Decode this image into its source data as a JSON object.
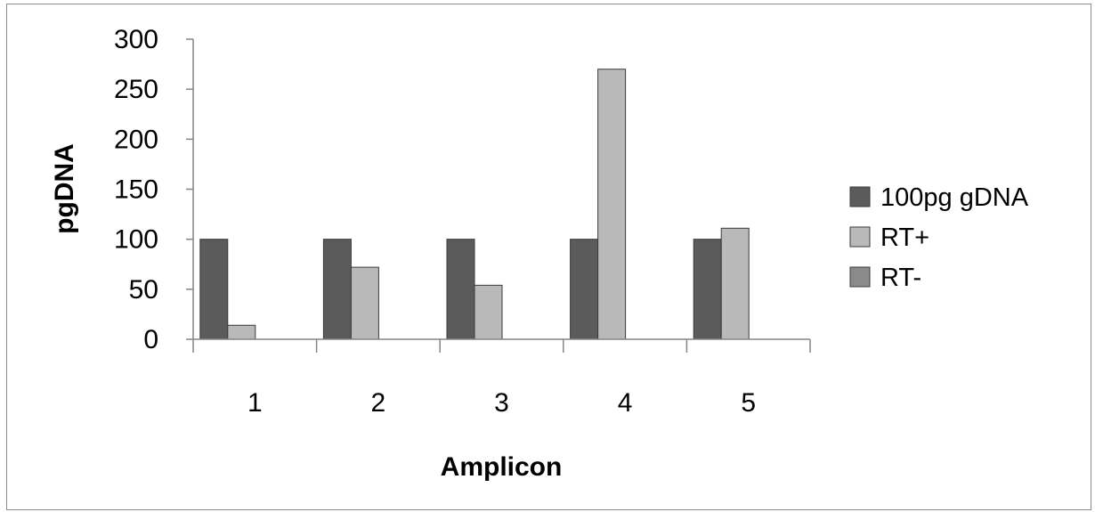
{
  "chart_data": {
    "type": "bar",
    "xlabel": "Amplicon",
    "ylabel": "pgDNA",
    "categories": [
      "1",
      "2",
      "3",
      "4",
      "5"
    ],
    "ylim": [
      0,
      300
    ],
    "yticks": [
      0,
      50,
      100,
      150,
      200,
      250,
      300
    ],
    "ytick_labels": [
      "0",
      "50",
      "100",
      "150",
      "200",
      "250",
      "300"
    ],
    "grid": false,
    "legend_position": "right",
    "series": [
      {
        "name": "100pg gDNA",
        "color": "#5b5b5b",
        "values": [
          100,
          100,
          100,
          100,
          100
        ]
      },
      {
        "name": "RT+",
        "color": "#b9b9b9",
        "values": [
          14,
          72,
          54,
          270,
          111
        ]
      },
      {
        "name": "RT-",
        "color": "#8a8a8a",
        "values": [
          0,
          0,
          0,
          0,
          0
        ]
      }
    ]
  }
}
